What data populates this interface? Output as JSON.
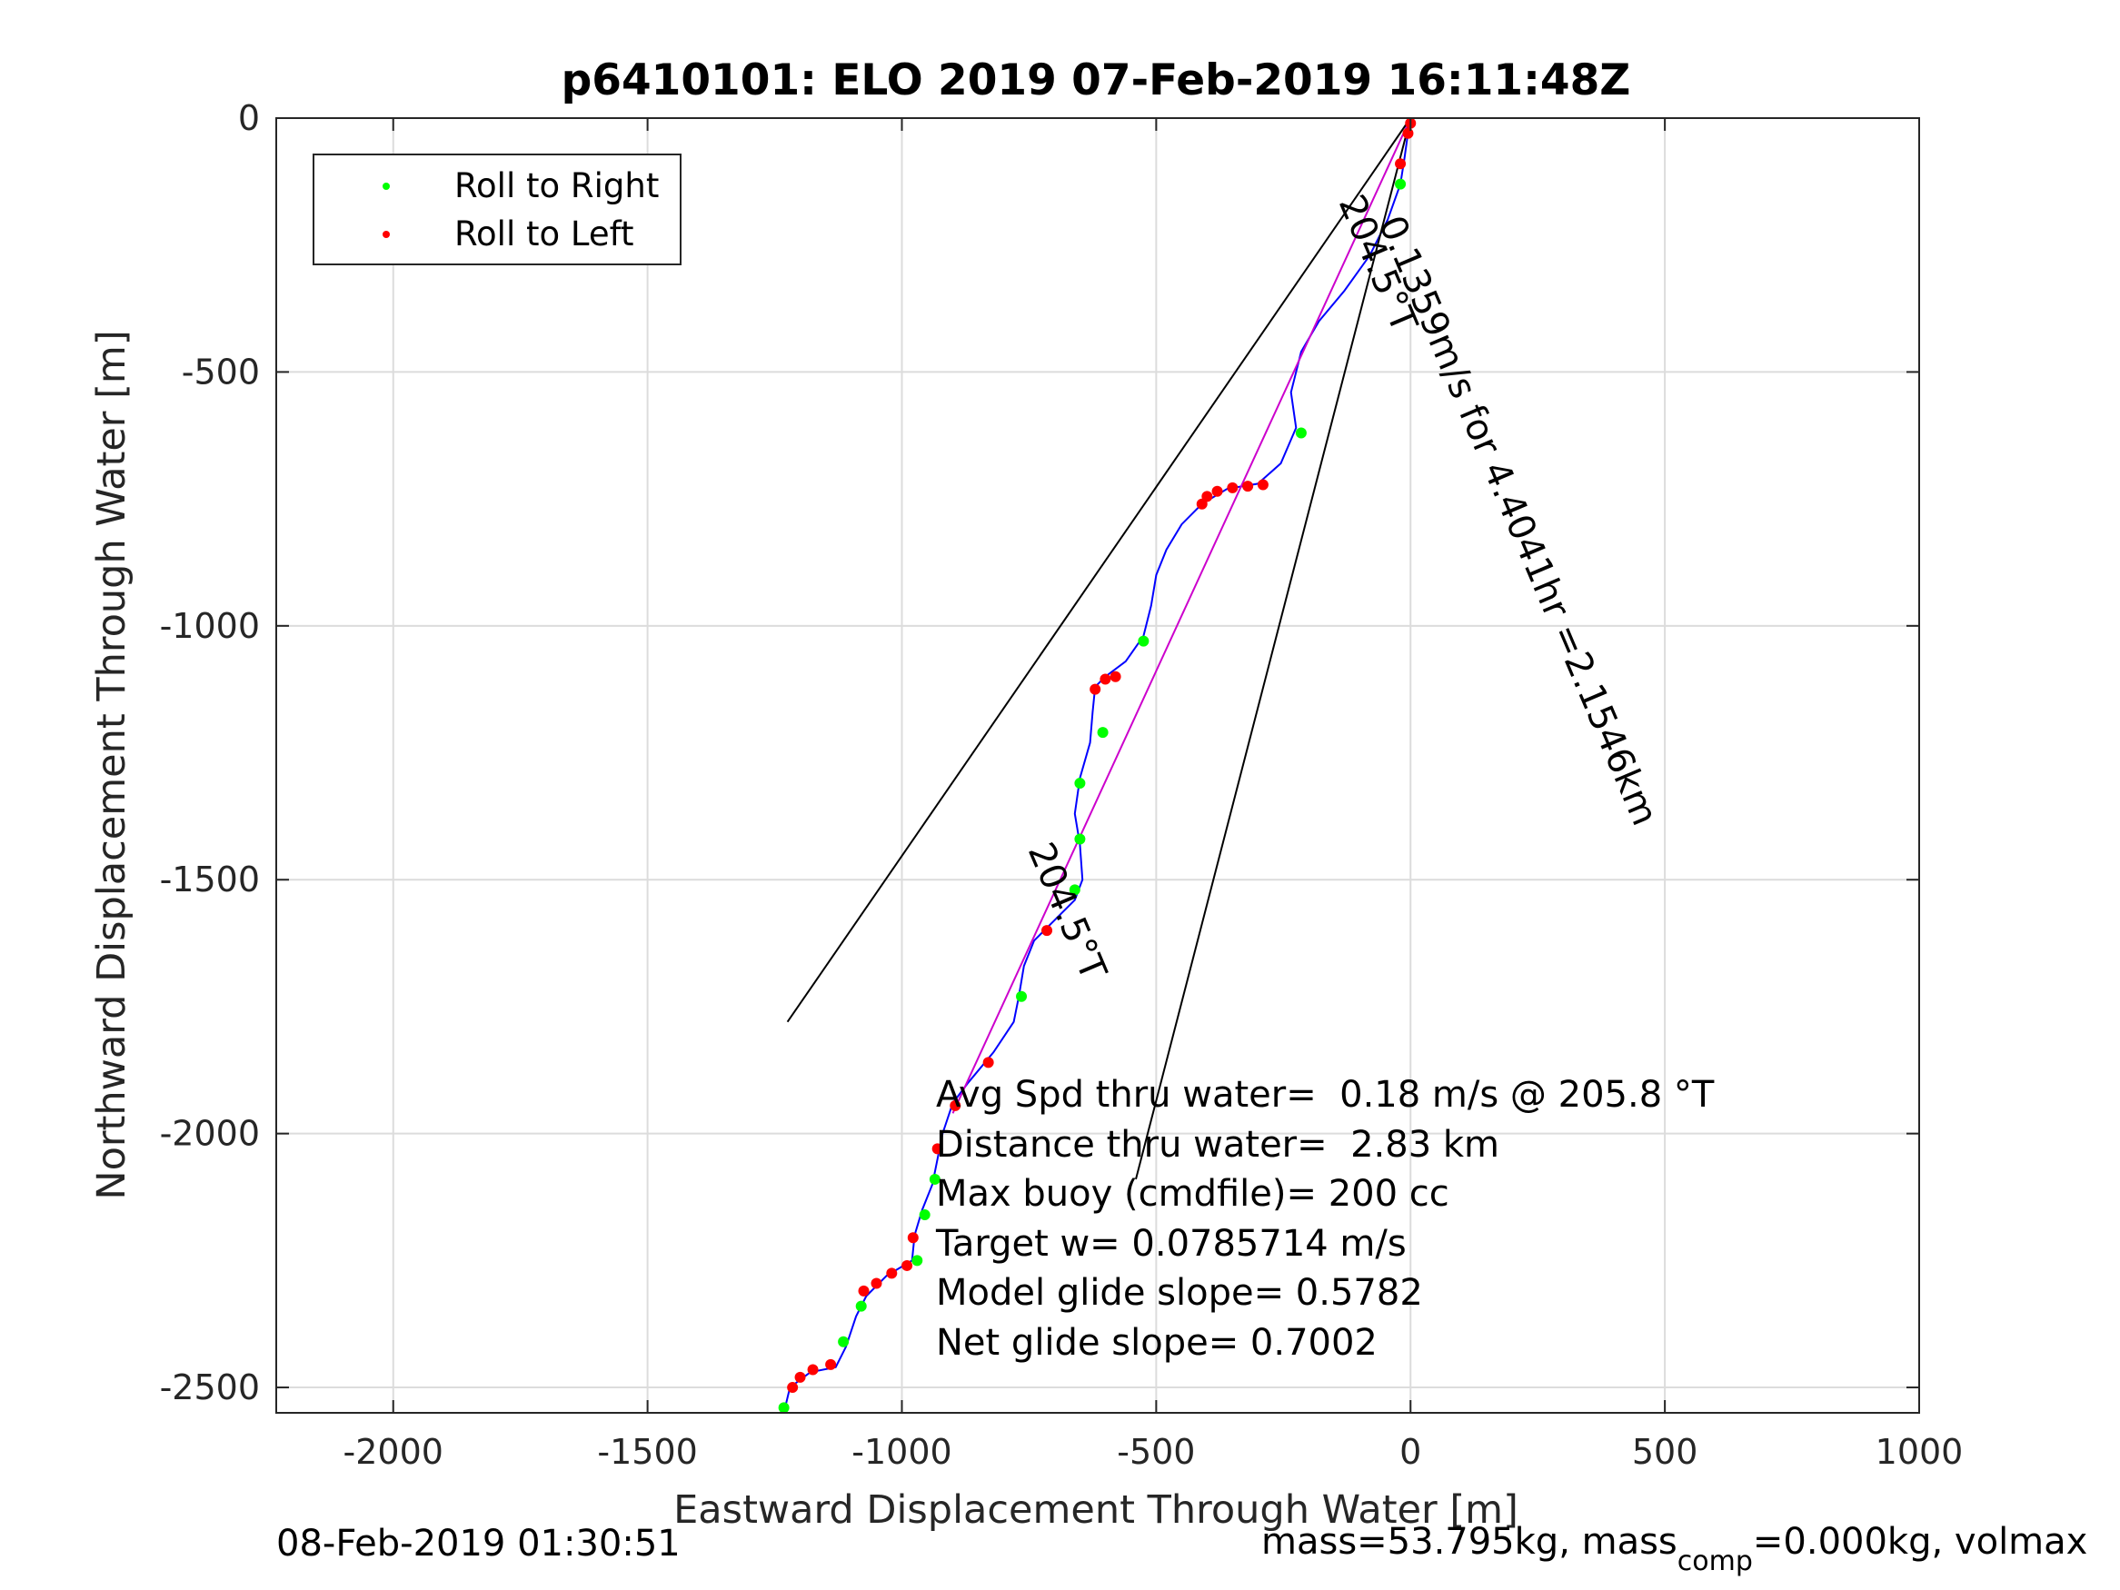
{
  "chart_data": {
    "type": "scatter",
    "title": "p6410101: ELO 2019 07-Feb-2019 16:11:48Z",
    "xlabel": "Eastward Displacement Through Water [m]",
    "ylabel": "Northward Displacement Through Water [m]",
    "xlim": [
      -2230,
      1000
    ],
    "ylim": [
      -2550,
      0
    ],
    "xticks": [
      -2000,
      -1500,
      -1000,
      -500,
      0,
      500,
      1000
    ],
    "yticks": [
      0,
      -500,
      -1000,
      -1500,
      -2000,
      -2500
    ],
    "grid": true,
    "legend_position": "top-left",
    "legend": [
      {
        "label": "Roll to Right",
        "color": "#00ff00"
      },
      {
        "label": "Roll to Left",
        "color": "#ff0000"
      }
    ],
    "series": [
      {
        "color": "#0000ff",
        "points": [
          [
            0,
            0
          ],
          [
            -5,
            -30
          ],
          [
            -12,
            -80
          ],
          [
            -20,
            -130
          ],
          [
            -45,
            -200
          ],
          [
            -80,
            -270
          ],
          [
            -130,
            -340
          ],
          [
            -180,
            -400
          ],
          [
            -215,
            -460
          ],
          [
            -235,
            -540
          ],
          [
            -225,
            -610
          ],
          [
            -255,
            -680
          ],
          [
            -300,
            -720
          ],
          [
            -360,
            -730
          ],
          [
            -410,
            -760
          ],
          [
            -450,
            -800
          ],
          [
            -480,
            -850
          ],
          [
            -500,
            -900
          ],
          [
            -510,
            -960
          ],
          [
            -525,
            -1020
          ],
          [
            -560,
            -1070
          ],
          [
            -600,
            -1100
          ],
          [
            -620,
            -1120
          ],
          [
            -625,
            -1170
          ],
          [
            -630,
            -1230
          ],
          [
            -650,
            -1300
          ],
          [
            -660,
            -1370
          ],
          [
            -650,
            -1430
          ],
          [
            -645,
            -1500
          ],
          [
            -660,
            -1540
          ],
          [
            -700,
            -1580
          ],
          [
            -740,
            -1620
          ],
          [
            -760,
            -1670
          ],
          [
            -770,
            -1730
          ],
          [
            -780,
            -1780
          ],
          [
            -820,
            -1840
          ],
          [
            -870,
            -1900
          ],
          [
            -900,
            -1940
          ],
          [
            -920,
            -2000
          ],
          [
            -930,
            -2050
          ],
          [
            -940,
            -2100
          ],
          [
            -960,
            -2150
          ],
          [
            -975,
            -2200
          ],
          [
            -980,
            -2250
          ],
          [
            -1030,
            -2280
          ],
          [
            -1070,
            -2320
          ],
          [
            -1090,
            -2360
          ],
          [
            -1110,
            -2420
          ],
          [
            -1130,
            -2460
          ],
          [
            -1180,
            -2470
          ],
          [
            -1220,
            -2500
          ],
          [
            -1232,
            -2550
          ]
        ]
      },
      {
        "color": "#cc00cc",
        "points": [
          [
            0,
            0
          ],
          [
            -900,
            -1960
          ]
        ]
      },
      {
        "color": "#000000",
        "points": [
          [
            0,
            0
          ],
          [
            -1225,
            -1780
          ]
        ]
      },
      {
        "color": "#000000",
        "points": [
          [
            0,
            0
          ],
          [
            -540,
            -2090
          ]
        ]
      },
      {
        "name": "Roll to Right",
        "color": "#00ff00",
        "points": [
          [
            -20,
            -130
          ],
          [
            -215,
            -620
          ],
          [
            -525,
            -1030
          ],
          [
            -605,
            -1210
          ],
          [
            -650,
            -1310
          ],
          [
            -650,
            -1420
          ],
          [
            -660,
            -1520
          ],
          [
            -765,
            -1730
          ],
          [
            -935,
            -2090
          ],
          [
            -955,
            -2160
          ],
          [
            -970,
            -2250
          ],
          [
            -1080,
            -2340
          ],
          [
            -1115,
            -2410
          ],
          [
            -1232,
            -2540
          ]
        ]
      },
      {
        "name": "Roll to Left",
        "color": "#ff0000",
        "points": [
          [
            0,
            -10
          ],
          [
            -5,
            -30
          ],
          [
            -20,
            -90
          ],
          [
            -290,
            -722
          ],
          [
            -320,
            -725
          ],
          [
            -350,
            -728
          ],
          [
            -380,
            -735
          ],
          [
            -400,
            -745
          ],
          [
            -410,
            -760
          ],
          [
            -580,
            -1100
          ],
          [
            -600,
            -1105
          ],
          [
            -620,
            -1125
          ],
          [
            -715,
            -1600
          ],
          [
            -830,
            -1860
          ],
          [
            -895,
            -1945
          ],
          [
            -930,
            -2030
          ],
          [
            -978,
            -2205
          ],
          [
            -990,
            -2260
          ],
          [
            -1020,
            -2275
          ],
          [
            -1050,
            -2295
          ],
          [
            -1075,
            -2310
          ],
          [
            -1140,
            -2455
          ],
          [
            -1175,
            -2465
          ],
          [
            -1200,
            -2480
          ],
          [
            -1215,
            -2500
          ]
        ]
      }
    ],
    "annotations": [
      {
        "text": "204.5°T"
      },
      {
        "text": "0.1359m/s for 4.4041hr =2.1546km"
      },
      {
        "text": "204.5°T"
      },
      {
        "text": "Avg Spd thru water=  0.18 m/s @ 205.8 °T"
      },
      {
        "text": "Distance thru water=  2.83 km"
      },
      {
        "text": "Max buoy (cmdfile)= 200 cc"
      },
      {
        "text": "Target w= 0.0785714 m/s"
      },
      {
        "text": "Model glide slope= 0.5782"
      },
      {
        "text": "Net glide slope= 0.7002"
      }
    ]
  },
  "footer": {
    "timestamp": "08-Feb-2019 01:30:51",
    "mass_prefix": "mass=53.795kg, mass",
    "mass_subscript": "comp",
    "mass_suffix": "=0.000kg, volmax"
  }
}
